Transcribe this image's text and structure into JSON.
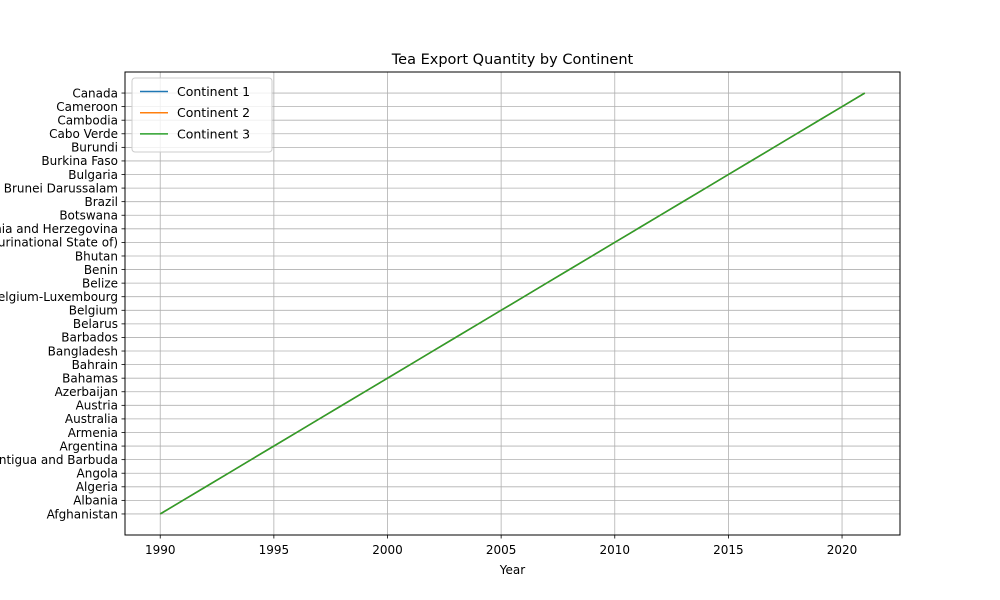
{
  "chart_data": {
    "type": "line",
    "title": "Tea Export Quantity by Continent",
    "xlabel": "Year",
    "ylabel": "",
    "x": [
      1990,
      1991,
      1992,
      1993,
      1994,
      1995,
      1996,
      1997,
      1998,
      1999,
      2000,
      2001,
      2002,
      2003,
      2004,
      2005,
      2006,
      2007,
      2008,
      2009,
      2010,
      2011,
      2012,
      2013,
      2014,
      2015,
      2016,
      2017,
      2018,
      2019,
      2020,
      2021
    ],
    "xlim": [
      1988.45,
      2022.55
    ],
    "x_ticks": [
      1990,
      1995,
      2000,
      2005,
      2010,
      2015,
      2020
    ],
    "y_categories": [
      "Afghanistan",
      "Albania",
      "Algeria",
      "Angola",
      "Antigua and Barbuda",
      "Argentina",
      "Armenia",
      "Australia",
      "Austria",
      "Azerbaijan",
      "Bahamas",
      "Bahrain",
      "Bangladesh",
      "Barbados",
      "Belarus",
      "Belgium",
      "Belgium-Luxembourg",
      "Belize",
      "Benin",
      "Bhutan",
      "Bolivia (Plurinational State of)",
      "Bosnia and Herzegovina",
      "Botswana",
      "Brazil",
      "Brunei Darussalam",
      "Bulgaria",
      "Burkina Faso",
      "Burundi",
      "Cabo Verde",
      "Cambodia",
      "Cameroon",
      "Canada"
    ],
    "series": [
      {
        "name": "Continent 1",
        "color": "#1f77b4",
        "values": [
          "Afghanistan",
          "Albania",
          "Algeria",
          "Angola",
          "Antigua and Barbuda",
          "Argentina",
          "Armenia",
          "Australia",
          "Austria",
          "Azerbaijan",
          "Bahamas",
          "Bahrain",
          "Bangladesh",
          "Barbados",
          "Belarus",
          "Belgium",
          "Belgium-Luxembourg",
          "Belize",
          "Benin",
          "Bhutan",
          "Bolivia (Plurinational State of)",
          "Bosnia and Herzegovina",
          "Botswana",
          "Brazil",
          "Brunei Darussalam",
          "Bulgaria",
          "Burkina Faso",
          "Burundi",
          "Cabo Verde",
          "Cambodia",
          "Cameroon",
          "Canada"
        ]
      },
      {
        "name": "Continent 2",
        "color": "#ff7f0e",
        "values": [
          "Afghanistan",
          "Albania",
          "Algeria",
          "Angola",
          "Antigua and Barbuda",
          "Argentina",
          "Armenia",
          "Australia",
          "Austria",
          "Azerbaijan",
          "Bahamas",
          "Bahrain",
          "Bangladesh",
          "Barbados",
          "Belarus",
          "Belgium",
          "Belgium-Luxembourg",
          "Belize",
          "Benin",
          "Bhutan",
          "Bolivia (Plurinational State of)",
          "Bosnia and Herzegovina",
          "Botswana",
          "Brazil",
          "Brunei Darussalam",
          "Bulgaria",
          "Burkina Faso",
          "Burundi",
          "Cabo Verde",
          "Cambodia",
          "Cameroon",
          "Canada"
        ]
      },
      {
        "name": "Continent 3",
        "color": "#2ca02c",
        "values": [
          "Afghanistan",
          "Albania",
          "Algeria",
          "Angola",
          "Antigua and Barbuda",
          "Argentina",
          "Armenia",
          "Australia",
          "Austria",
          "Azerbaijan",
          "Bahamas",
          "Bahrain",
          "Bangladesh",
          "Barbados",
          "Belarus",
          "Belgium",
          "Belgium-Luxembourg",
          "Belize",
          "Benin",
          "Bhutan",
          "Bolivia (Plurinational State of)",
          "Bosnia and Herzegovina",
          "Botswana",
          "Brazil",
          "Brunei Darussalam",
          "Bulgaria",
          "Burkina Faso",
          "Burundi",
          "Cabo Verde",
          "Cambodia",
          "Cameroon",
          "Canada"
        ]
      }
    ],
    "grid": true,
    "legend": "upper left"
  }
}
